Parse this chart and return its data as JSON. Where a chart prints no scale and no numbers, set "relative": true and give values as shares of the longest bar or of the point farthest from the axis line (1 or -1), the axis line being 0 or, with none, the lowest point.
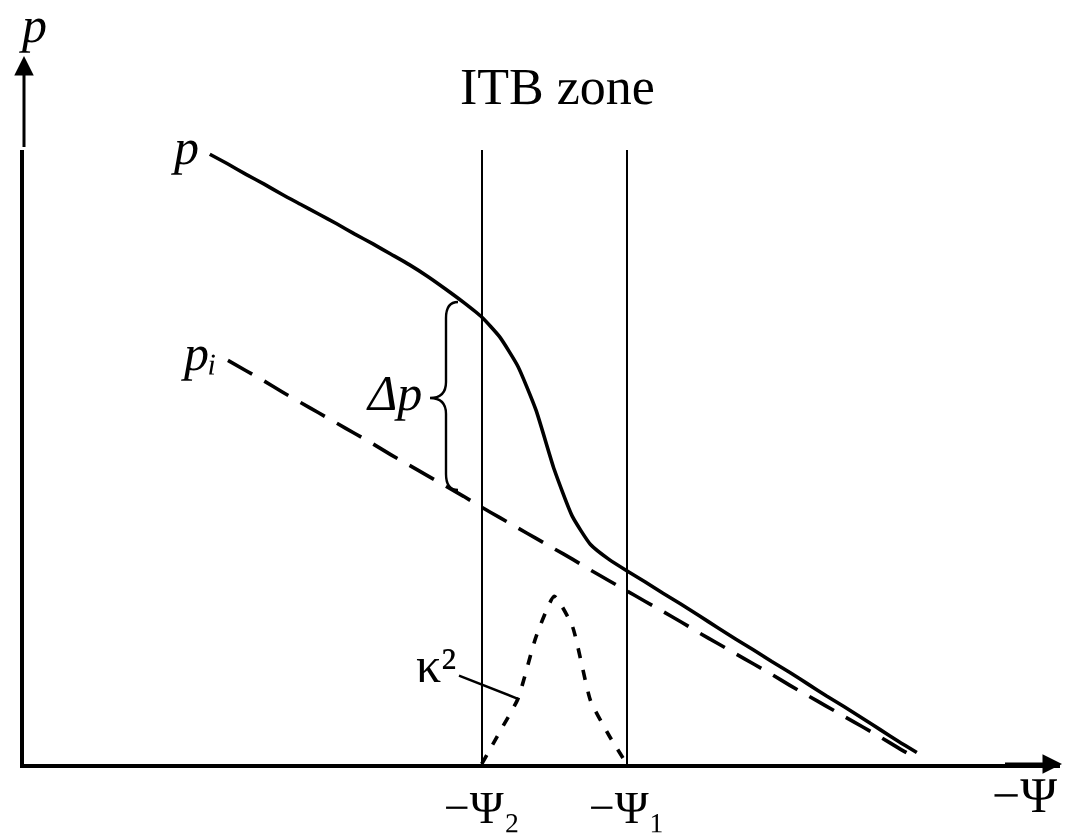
{
  "chart_data": {
    "type": "line",
    "relative": true,
    "xlabel": "−Ψ",
    "ylabel": "p",
    "tick_labels": "x",
    "grid": "x",
    "annotations": [
      "ITB zone",
      "Δp"
    ],
    "categories": [
      null,
      null,
      null,
      null,
      null,
      null,
      null,
      null,
      null,
      null,
      null,
      null,
      null,
      null,
      null,
      null,
      null,
      null,
      null,
      null,
      null,
      null,
      null,
      null,
      null,
      "−Ψ₂",
      null,
      null,
      null,
      null,
      null,
      null,
      null,
      "−Ψ₁",
      null,
      null,
      null,
      null,
      null,
      null,
      null,
      null,
      null,
      null,
      null,
      null,
      null,
      null,
      null,
      null
    ],
    "series": [
      {
        "name": "p",
        "color": "#000000",
        "line_style": "solid",
        "values": [
          null,
          null,
          null,
          null,
          null,
          null,
          null,
          null,
          null,
          null,
          1.0,
          0.984,
          0.967,
          0.951,
          0.934,
          0.918,
          0.902,
          0.886,
          0.869,
          0.853,
          0.836,
          0.819,
          0.8,
          0.779,
          0.757,
          0.733,
          0.7,
          0.652,
          0.58,
          0.483,
          0.406,
          0.36,
          0.336,
          0.317,
          0.299,
          0.28,
          0.262,
          0.243,
          0.224,
          0.205,
          0.187,
          0.168,
          0.15,
          0.131,
          0.112,
          0.094,
          0.075,
          0.056,
          0.037,
          0.019
        ]
      },
      {
        "name": "pᵢ",
        "color": "#000000",
        "line_style": "dashed",
        "values": [
          null,
          null,
          null,
          null,
          null,
          null,
          null,
          null,
          null,
          null,
          null,
          0.662,
          0.645,
          0.628,
          0.61,
          0.593,
          0.576,
          0.559,
          0.542,
          0.525,
          0.507,
          0.49,
          0.473,
          0.456,
          0.439,
          0.421,
          0.404,
          0.387,
          0.37,
          0.353,
          0.336,
          0.318,
          0.301,
          0.284,
          0.267,
          0.25,
          0.233,
          0.215,
          0.198,
          0.181,
          0.164,
          0.147,
          0.129,
          0.112,
          0.095,
          0.078,
          0.061,
          0.044,
          0.026,
          0.009
        ]
      },
      {
        "name": "κ²",
        "color": "#000000",
        "line_style": "dotted",
        "values": [
          null,
          null,
          null,
          null,
          null,
          null,
          null,
          null,
          null,
          null,
          null,
          null,
          null,
          null,
          null,
          null,
          null,
          null,
          null,
          null,
          null,
          null,
          null,
          null,
          null,
          0,
          0.053,
          0.107,
          0.209,
          0.275,
          0.226,
          0.104,
          0.048,
          0,
          null,
          null,
          null,
          null,
          null,
          null,
          null,
          null,
          null,
          null,
          null,
          null,
          null,
          null,
          null,
          null
        ]
      }
    ]
  }
}
